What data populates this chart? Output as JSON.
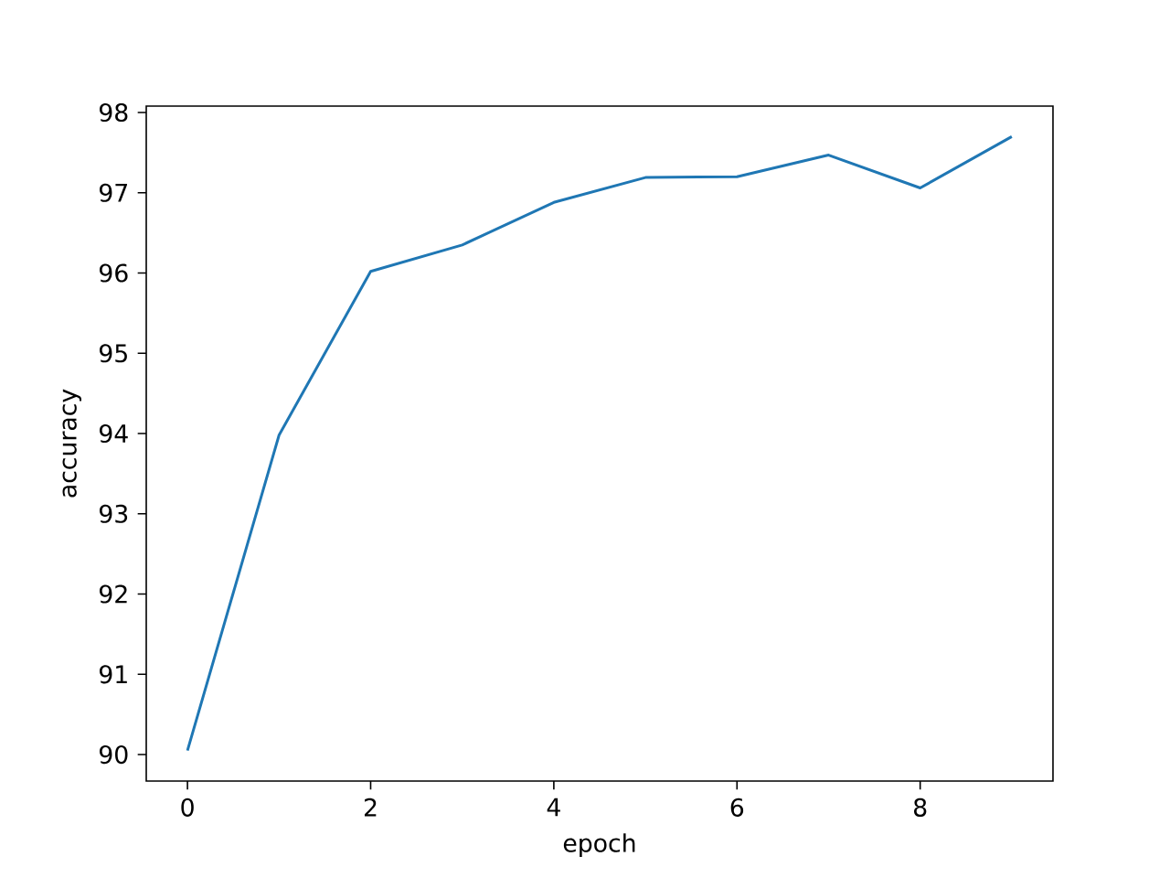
{
  "chart_data": {
    "type": "line",
    "xlabel": "epoch",
    "ylabel": "accuracy",
    "x": [
      0,
      1,
      2,
      3,
      4,
      5,
      6,
      7,
      8,
      9
    ],
    "series": [
      {
        "color": "#1f77b4",
        "values": [
          90.05,
          93.98,
          96.02,
          96.35,
          96.88,
          97.19,
          97.2,
          97.47,
          97.06,
          97.7
        ]
      }
    ],
    "xlim": [
      -0.45,
      9.45
    ],
    "ylim": [
      89.67,
      98.08
    ],
    "xticks": [
      0,
      2,
      4,
      6,
      8
    ],
    "yticks": [
      90,
      91,
      92,
      93,
      94,
      95,
      96,
      97,
      98
    ],
    "grid": false,
    "marker": "none",
    "line_style": "solid"
  }
}
